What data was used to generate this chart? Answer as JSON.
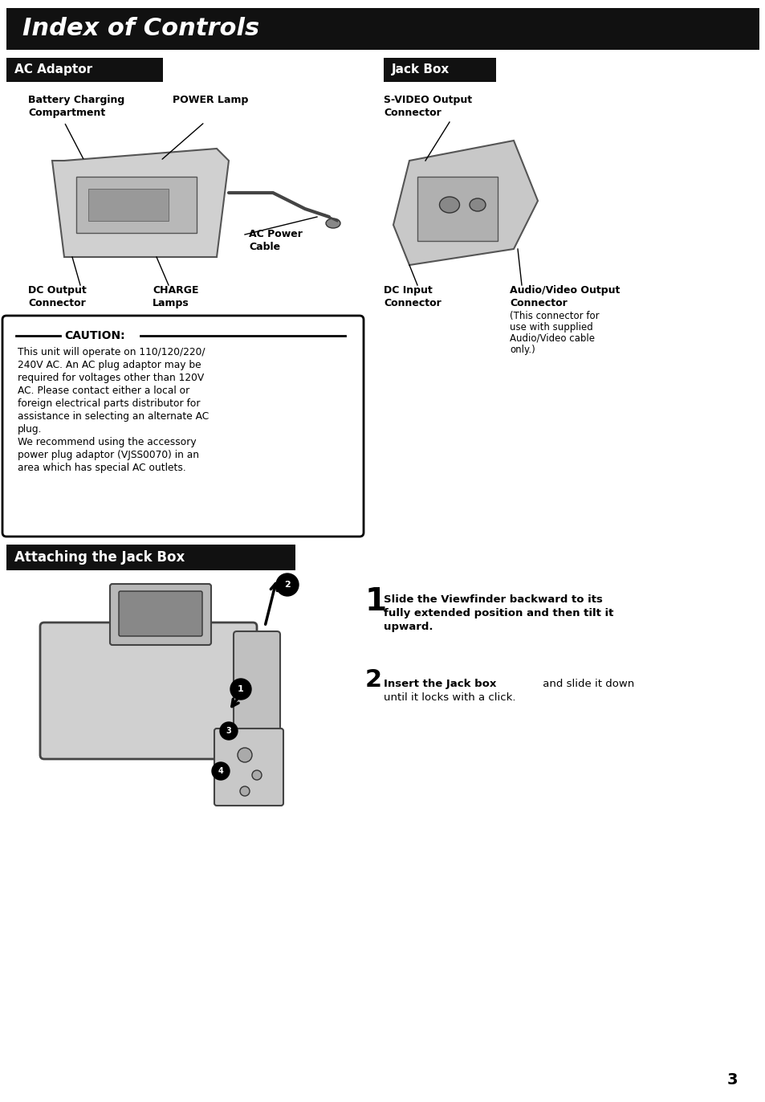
{
  "title": "Index of Controls",
  "title_bg": "#000000",
  "title_color": "#ffffff",
  "page_bg": "#ffffff",
  "page_number": "3",
  "section1_title": "AC Adaptor",
  "section2_title": "Jack Box",
  "section3_title": "Attaching the Jack Box",
  "section_bg": "#000000",
  "section_color": "#ffffff",
  "caution_text_lines": [
    "This unit will operate on 110/120/220/",
    "240V AC. An AC plug adaptor may be",
    "required for voltages other than 120V",
    "AC. Please contact either a local or",
    "foreign electrical parts distributor for",
    "assistance in selecting an alternate AC",
    "plug.",
    "We recommend using the accessory",
    "power plug adaptor (VJSS0070) in an",
    "area which has special AC outlets."
  ]
}
